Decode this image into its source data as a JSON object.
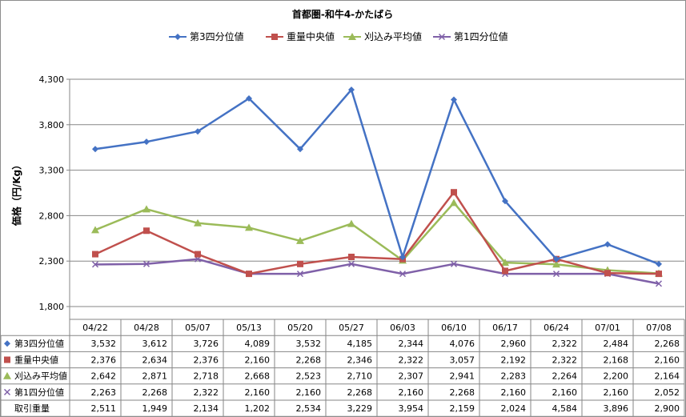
{
  "chart_data": {
    "type": "line",
    "title": "首都圏-和牛4-かたばら",
    "ylabel": "価格（円/Kg）",
    "xlabel": "",
    "ylim": [
      1800,
      4300
    ],
    "yticks": [
      "1,800",
      "2,300",
      "2,800",
      "3,300",
      "3,800",
      "4,300"
    ],
    "grid": true,
    "legend_position": "top",
    "categories": [
      "04/22",
      "04/28",
      "05/07",
      "05/13",
      "05/20",
      "05/27",
      "06/03",
      "06/10",
      "06/17",
      "06/24",
      "07/01",
      "07/08"
    ],
    "series": [
      {
        "name": "第3四分位値",
        "color": "#4472c4",
        "marker": "diamond",
        "values": [
          3532,
          3612,
          3726,
          4089,
          3532,
          4185,
          2344,
          4076,
          2960,
          2322,
          2484,
          2268
        ],
        "labels": [
          "3,532",
          "3,612",
          "3,726",
          "4,089",
          "3,532",
          "4,185",
          "2,344",
          "4,076",
          "2,960",
          "2,322",
          "2,484",
          "2,268"
        ]
      },
      {
        "name": "重量中央値",
        "color": "#c0504d",
        "marker": "square",
        "values": [
          2376,
          2634,
          2376,
          2160,
          2268,
          2346,
          2322,
          3057,
          2192,
          2322,
          2168,
          2160
        ],
        "labels": [
          "2,376",
          "2,634",
          "2,376",
          "2,160",
          "2,268",
          "2,346",
          "2,322",
          "3,057",
          "2,192",
          "2,322",
          "2,168",
          "2,160"
        ]
      },
      {
        "name": "刈込み平均値",
        "color": "#9bbb59",
        "marker": "triangle",
        "values": [
          2642,
          2871,
          2718,
          2668,
          2523,
          2710,
          2307,
          2941,
          2283,
          2264,
          2200,
          2164
        ],
        "labels": [
          "2,642",
          "2,871",
          "2,718",
          "2,668",
          "2,523",
          "2,710",
          "2,307",
          "2,941",
          "2,283",
          "2,264",
          "2,200",
          "2,164"
        ]
      },
      {
        "name": "第1四分位値",
        "color": "#7f60a8",
        "marker": "x",
        "values": [
          2263,
          2268,
          2322,
          2160,
          2160,
          2268,
          2160,
          2268,
          2160,
          2160,
          2160,
          2052
        ],
        "labels": [
          "2,263",
          "2,268",
          "2,322",
          "2,160",
          "2,160",
          "2,268",
          "2,160",
          "2,268",
          "2,160",
          "2,160",
          "2,160",
          "2,052"
        ]
      }
    ],
    "extra_rows": [
      {
        "name": "取引重量",
        "values": [
          2511,
          1949,
          2134,
          1202,
          2534,
          3229,
          3954,
          2159,
          2024,
          4584,
          3896,
          2900
        ],
        "labels": [
          "2,511",
          "1,949",
          "2,134",
          "1,202",
          "2,534",
          "3,229",
          "3,954",
          "2,159",
          "2,024",
          "4,584",
          "3,896",
          "2,900"
        ]
      }
    ]
  }
}
